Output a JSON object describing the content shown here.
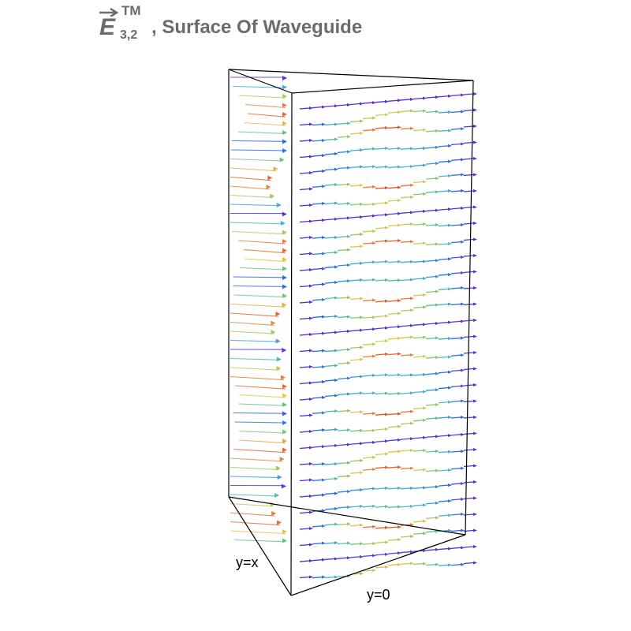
{
  "title": {
    "symbol": "E",
    "superscript": "TM",
    "subscript": "3,2",
    "text": ", Surface Of Waveguide"
  },
  "labels": {
    "diagonal_face": "y=x",
    "bottom_face": "y=0"
  },
  "colors": {
    "title": "#6b6b6b",
    "edges": "#000000",
    "low_field": "#5a2ed6",
    "mid_field": "#43b7c9",
    "high_field": "#e8432a"
  }
}
